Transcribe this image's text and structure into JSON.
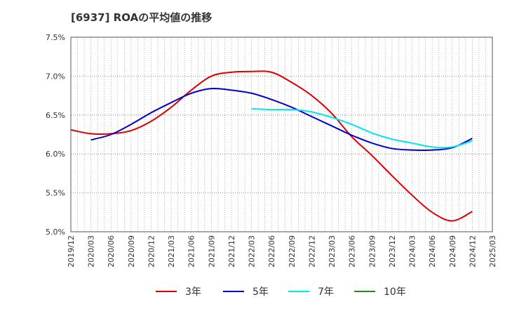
{
  "title": "[6937]  ROAの平均値の推移",
  "chart_data": {
    "type": "line",
    "y_ticks": [
      "7.5%",
      "7.0%",
      "6.5%",
      "6.0%",
      "5.5%",
      "5.0%"
    ],
    "ylim": [
      5.0,
      7.5
    ],
    "x_ticks": [
      "2019/12",
      "2020/03",
      "2020/06",
      "2020/09",
      "2020/12",
      "2021/03",
      "2021/06",
      "2021/09",
      "2021/12",
      "2022/03",
      "2022/06",
      "2022/09",
      "2022/12",
      "2023/03",
      "2023/06",
      "2023/09",
      "2023/12",
      "2024/03",
      "2024/06",
      "2024/09",
      "2024/12",
      "2025/03"
    ],
    "grid": true,
    "legend_position": "bottom",
    "series": [
      {
        "name": "3年",
        "color": "#dd0000",
        "x": [
          "2019/12",
          "2020/03",
          "2020/06",
          "2020/09",
          "2020/12",
          "2021/03",
          "2021/06",
          "2021/09",
          "2021/12",
          "2022/03",
          "2022/06",
          "2022/09",
          "2022/12",
          "2023/03",
          "2023/06",
          "2023/09",
          "2023/12",
          "2024/03",
          "2024/06",
          "2024/09",
          "2024/12"
        ],
        "values": [
          6.31,
          6.26,
          6.26,
          6.3,
          6.42,
          6.6,
          6.82,
          7.0,
          7.05,
          7.06,
          7.05,
          6.92,
          6.75,
          6.52,
          6.22,
          5.98,
          5.72,
          5.47,
          5.25,
          5.14,
          5.26
        ]
      },
      {
        "name": "5年",
        "color": "#0000cc",
        "x": [
          "2020/03",
          "2020/06",
          "2020/09",
          "2020/12",
          "2021/03",
          "2021/06",
          "2021/09",
          "2021/12",
          "2022/03",
          "2022/06",
          "2022/09",
          "2022/12",
          "2023/03",
          "2023/06",
          "2023/09",
          "2023/12",
          "2024/03",
          "2024/06",
          "2024/09",
          "2024/12"
        ],
        "values": [
          6.18,
          6.25,
          6.38,
          6.53,
          6.66,
          6.78,
          6.84,
          6.82,
          6.78,
          6.7,
          6.6,
          6.48,
          6.36,
          6.24,
          6.14,
          6.07,
          6.05,
          6.05,
          6.08,
          6.2
        ]
      },
      {
        "name": "7年",
        "color": "#00e5ee",
        "x": [
          "2022/03",
          "2022/06",
          "2022/09",
          "2022/12",
          "2023/03",
          "2023/06",
          "2023/09",
          "2023/12",
          "2024/03",
          "2024/06",
          "2024/09",
          "2024/12"
        ],
        "values": [
          6.58,
          6.57,
          6.57,
          6.54,
          6.47,
          6.38,
          6.27,
          6.19,
          6.14,
          6.09,
          6.09,
          6.17
        ]
      },
      {
        "name": "10年",
        "color": "#228b22",
        "x": [],
        "values": []
      }
    ]
  }
}
